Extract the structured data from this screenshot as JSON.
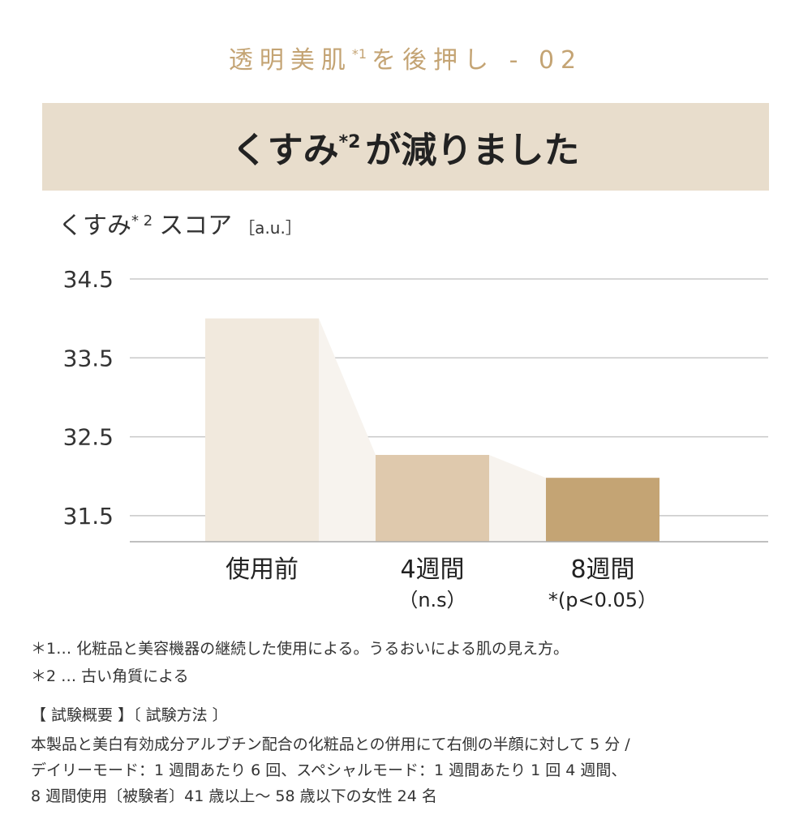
{
  "header": {
    "title": "透明美肌",
    "sup": "*1",
    "rest": "を後押し - 02"
  },
  "banner": {
    "title": "くすみ",
    "sup": "*2",
    "rest": "が減りました"
  },
  "chart_data": {
    "type": "bar",
    "y_label": "くすみ",
    "y_label_sup": "* 2",
    "y_label_rest": "スコア",
    "y_unit": "［a.u.］",
    "categories": [
      "使用前",
      "4週間",
      "8週間"
    ],
    "category_notes": [
      null,
      "（n.s）",
      "*(p<0.05）"
    ],
    "values": [
      34.0,
      32.27,
      31.98
    ],
    "colors": [
      "#f1e9dd",
      "#dfc9ad",
      "#c4a474"
    ],
    "ylim": [
      31.17,
      34.5
    ],
    "yticks": [
      31.5,
      32.5,
      33.5,
      34.5
    ],
    "grid": true
  },
  "footnotes": [
    "＊1… 化粧品と美容機器の継続した使用による。うるおいによる肌の見え方。",
    "＊2 … 古い角質による"
  ],
  "test": {
    "heading": "【 試験概要 】〔 試験方法 〕",
    "lines": [
      "本製品と美白有効成分アルブチン配合の化粧品との併用にて右側の半顔に対して 5 分 /",
      "デイリーモード：1 週間あたり 6 回、スペシャルモード：1 週間あたり 1 回 4 週間、",
      "8 週間使用〔被験者〕41 歳以上〜 58 歳以下の女性 24 名"
    ]
  }
}
